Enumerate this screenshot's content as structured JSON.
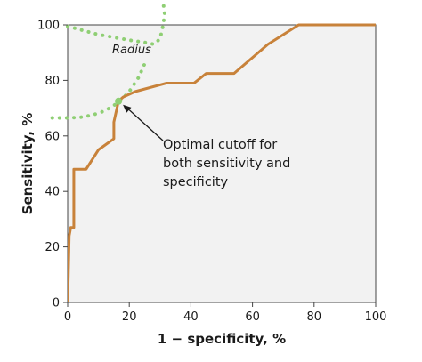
{
  "chart_data": {
    "type": "line",
    "xlabel": "1 − specificity, %",
    "ylabel": "Sensitivity, %",
    "xlim": [
      0,
      100
    ],
    "ylim": [
      0,
      100
    ],
    "xticks": [
      "0",
      "20",
      "40",
      "60",
      "80",
      "100"
    ],
    "yticks": [
      "0",
      "20",
      "40",
      "60",
      "80",
      "100"
    ],
    "grid": false,
    "series": [
      {
        "color": "#c8823a",
        "x": [
          0,
          0.5,
          1,
          2,
          2,
          6,
          10,
          15,
          15,
          16,
          16.5,
          18,
          22,
          32,
          41,
          45,
          54,
          65,
          75,
          100
        ],
        "y": [
          0,
          24,
          27,
          27,
          48,
          48,
          55,
          59,
          65,
          70,
          72.5,
          74,
          76,
          79,
          79,
          82.5,
          82.5,
          93,
          100,
          100
        ]
      }
    ],
    "radius_arc_1": {
      "color": "#8fcf74",
      "x": [
        0,
        5,
        10,
        15,
        20,
        25,
        28,
        30,
        31,
        31.5,
        31
      ],
      "y": [
        99.5,
        98,
        96.5,
        95.5,
        94.5,
        93.7,
        93,
        95,
        100,
        104,
        108
      ]
    },
    "radius_arc_2": {
      "color": "#8fcf74",
      "x": [
        -5,
        0,
        4,
        8,
        12,
        15,
        17,
        20,
        23,
        25
      ],
      "y": [
        66.5,
        66.5,
        66.7,
        67.5,
        69,
        71,
        72.5,
        76,
        81,
        86
      ]
    },
    "optimal_point": {
      "x": 16.5,
      "y": 72.5,
      "color": "#8fcf74"
    },
    "annotations": {
      "radius": "Radius",
      "optimal_line1": "Optimal cutoff for",
      "optimal_line2": "both sensitivity and",
      "optimal_line3": "specificity"
    },
    "plot_background": "#f2f2f2"
  }
}
